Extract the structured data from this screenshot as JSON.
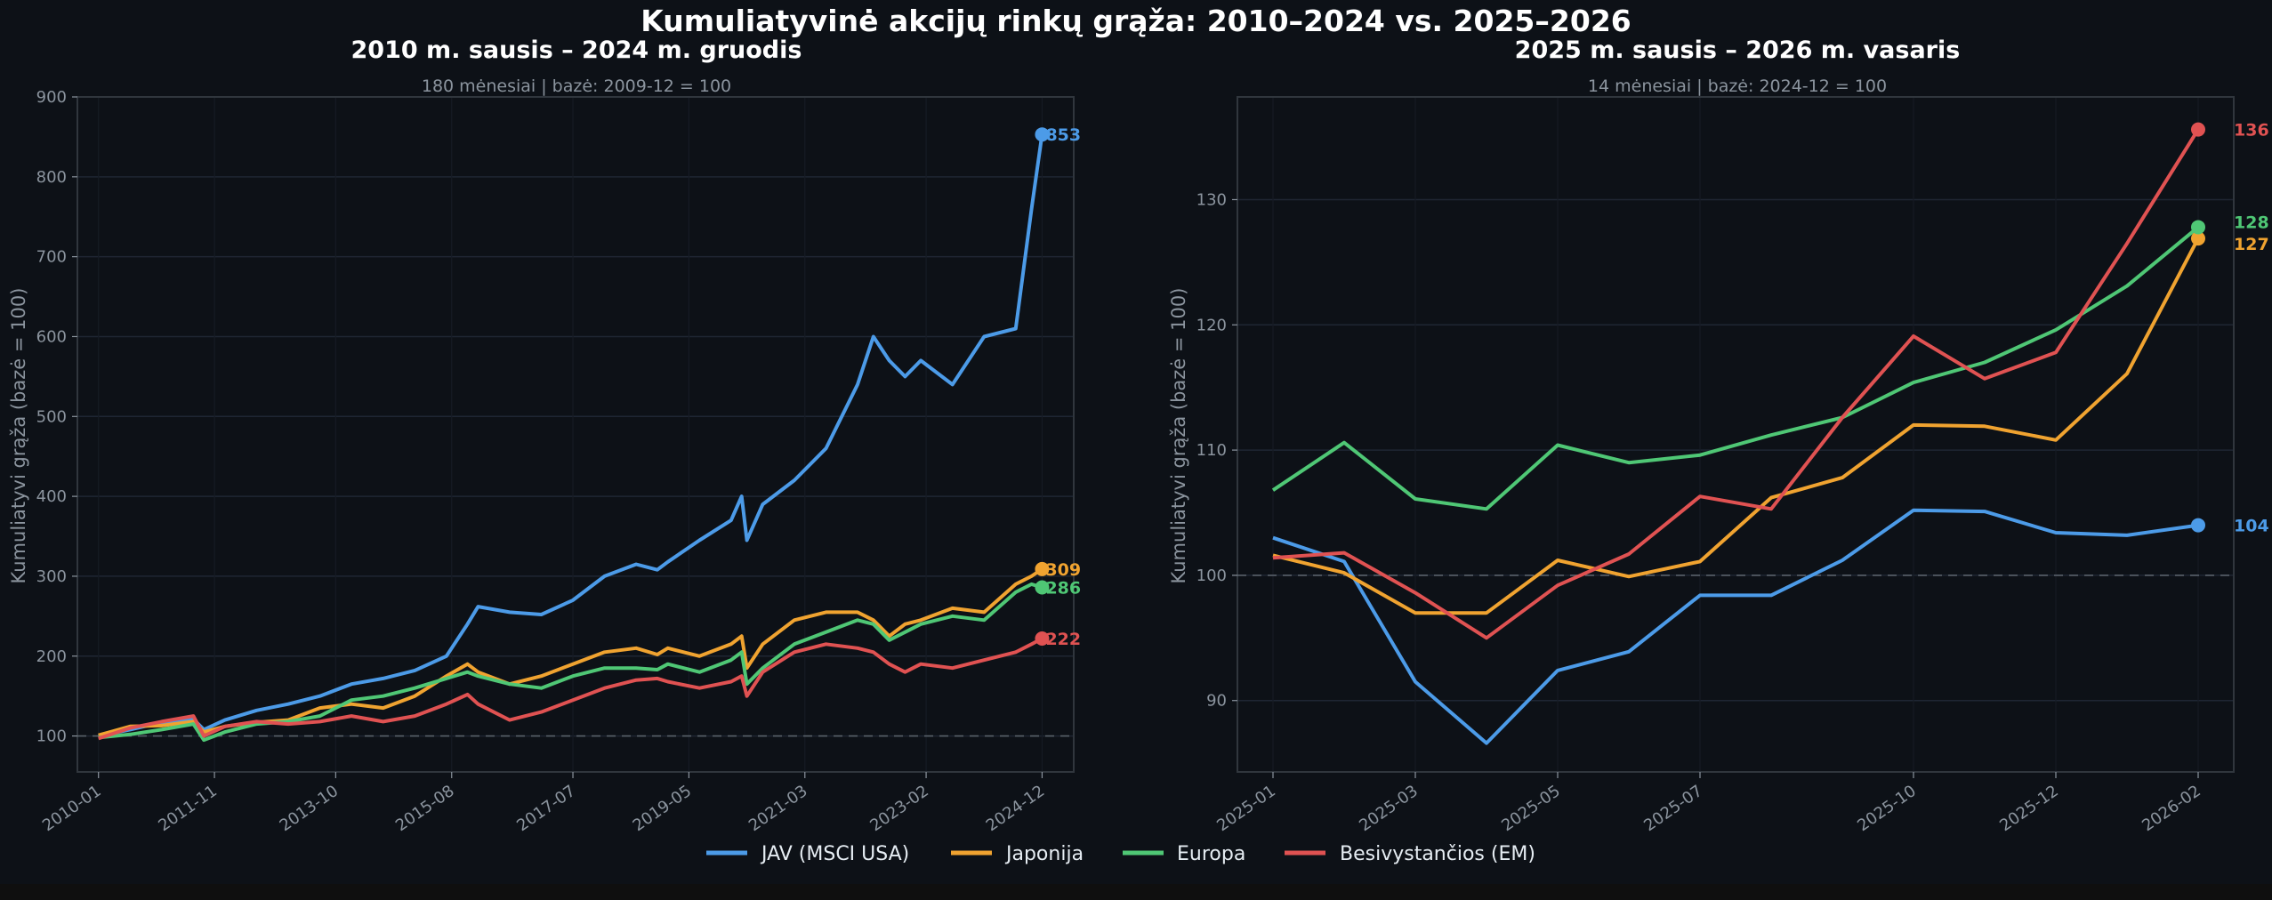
{
  "title": "Kumuliatyvinė akcijų rinkų grąža: 2010–2024 vs. 2025–2026",
  "colors": {
    "background": "#0d1117",
    "grid": "#1f2633",
    "axis": "#30363d",
    "text_muted": "#8b949e",
    "JAV": "#4c9be8",
    "Japonija": "#f0a330",
    "Europa": "#4fc775",
    "EM": "#e05252"
  },
  "legend": [
    {
      "key": "JAV",
      "label": "JAV (MSCI USA)"
    },
    {
      "key": "Japonija",
      "label": "Japonija"
    },
    {
      "key": "Europa",
      "label": "Europa"
    },
    {
      "key": "EM",
      "label": "Besivystančios (EM)"
    }
  ],
  "chart_data": [
    {
      "type": "line",
      "title": "2010 m. sausis – 2024 m. gruodis",
      "subtitle": "180 mėnesiai  |  bazė: 2009-12 = 100",
      "xlabel": "",
      "ylabel": "Kumuliatyvi grąža (bazė = 100)",
      "ylim": [
        55,
        900
      ],
      "yticks": [
        100,
        200,
        300,
        400,
        500,
        600,
        700,
        800,
        900
      ],
      "xlim_months": [
        -4,
        185
      ],
      "xticks": [
        {
          "month": 0,
          "label": "2010-01"
        },
        {
          "month": 22,
          "label": "2011-11"
        },
        {
          "month": 45,
          "label": "2013-10"
        },
        {
          "month": 67,
          "label": "2015-08"
        },
        {
          "month": 90,
          "label": "2017-07"
        },
        {
          "month": 112,
          "label": "2019-05"
        },
        {
          "month": 134,
          "label": "2021-03"
        },
        {
          "month": 157,
          "label": "2023-02"
        },
        {
          "month": 179,
          "label": "2024-12"
        }
      ],
      "baseline": 100,
      "grid": true,
      "x_months": [
        0,
        6,
        12,
        18,
        20,
        24,
        30,
        36,
        42,
        48,
        54,
        60,
        66,
        70,
        72,
        78,
        84,
        90,
        96,
        102,
        106,
        108,
        114,
        120,
        122,
        123,
        126,
        132,
        138,
        144,
        147,
        150,
        153,
        156,
        162,
        168,
        174,
        177,
        179
      ],
      "series": [
        {
          "key": "JAV",
          "name": "JAV (MSCI USA)",
          "end_label": "853",
          "values": [
            100,
            108,
            117,
            121,
            108,
            120,
            132,
            140,
            150,
            165,
            172,
            182,
            200,
            240,
            262,
            255,
            252,
            270,
            300,
            315,
            308,
            318,
            345,
            370,
            400,
            345,
            390,
            420,
            460,
            540,
            600,
            570,
            550,
            570,
            540,
            600,
            610,
            760,
            853
          ]
        },
        {
          "key": "Japonija",
          "name": "Japonija",
          "end_label": "309",
          "values": [
            101,
            112,
            113,
            118,
            105,
            112,
            117,
            120,
            135,
            140,
            135,
            150,
            175,
            190,
            180,
            165,
            175,
            190,
            205,
            210,
            202,
            210,
            200,
            215,
            225,
            185,
            215,
            245,
            255,
            255,
            245,
            225,
            240,
            245,
            260,
            255,
            290,
            300,
            309
          ]
        },
        {
          "key": "Europa",
          "name": "Europa",
          "end_label": "286",
          "values": [
            98,
            102,
            108,
            115,
            95,
            105,
            115,
            118,
            125,
            145,
            150,
            160,
            172,
            180,
            175,
            165,
            160,
            175,
            185,
            185,
            183,
            190,
            180,
            195,
            205,
            165,
            185,
            215,
            230,
            245,
            240,
            220,
            230,
            240,
            250,
            245,
            280,
            290,
            286
          ]
        },
        {
          "key": "EM",
          "name": "Besivystančios (EM)",
          "end_label": "222",
          "values": [
            97,
            110,
            118,
            125,
            100,
            112,
            118,
            115,
            118,
            125,
            118,
            125,
            140,
            152,
            140,
            120,
            130,
            145,
            160,
            170,
            172,
            168,
            160,
            168,
            175,
            150,
            180,
            205,
            215,
            210,
            205,
            190,
            180,
            190,
            185,
            195,
            205,
            215,
            222
          ]
        }
      ]
    },
    {
      "type": "line",
      "title": "2025 m. sausis – 2026 m. vasaris",
      "subtitle": "14 mėnesiai  |  bazė: 2024-12 = 100",
      "xlabel": "",
      "ylabel": "Kumuliatyvi grąža (bazė = 100)",
      "ylim": [
        84.3,
        138.2
      ],
      "yticks": [
        90,
        100,
        110,
        120,
        130
      ],
      "x": [
        "2025-01",
        "2025-02",
        "2025-03",
        "2025-04",
        "2025-05",
        "2025-06",
        "2025-07",
        "2025-08",
        "2025-09",
        "2025-10",
        "2025-11",
        "2025-12",
        "2026-01",
        "2026-02"
      ],
      "xticks": [
        "2025-01",
        "2025-03",
        "2025-05",
        "2025-07",
        "2025-10",
        "2025-12",
        "2026-02"
      ],
      "baseline": 100,
      "grid": true,
      "series": [
        {
          "key": "JAV",
          "name": "JAV (MSCI USA)",
          "end_label": "104",
          "values": [
            103.0,
            101.1,
            91.5,
            86.6,
            92.4,
            93.9,
            98.4,
            98.4,
            101.2,
            105.2,
            105.1,
            103.4,
            103.2,
            104.0
          ]
        },
        {
          "key": "Japonija",
          "name": "Japonija",
          "end_label": "127",
          "values": [
            101.6,
            100.2,
            97.0,
            97.0,
            101.2,
            99.9,
            101.1,
            106.2,
            107.8,
            112.0,
            111.9,
            110.8,
            116.1,
            126.9
          ]
        },
        {
          "key": "Europa",
          "name": "Europa",
          "end_label": "128",
          "values": [
            106.8,
            110.6,
            106.1,
            105.3,
            110.4,
            109.0,
            109.6,
            111.2,
            112.6,
            115.4,
            117.0,
            119.6,
            123.1,
            127.8
          ]
        },
        {
          "key": "EM",
          "name": "Besivystančios (EM)",
          "end_label": "136",
          "values": [
            101.4,
            101.8,
            98.6,
            95.0,
            99.2,
            101.7,
            106.3,
            105.3,
            112.6,
            119.1,
            115.7,
            117.8,
            126.5,
            135.6
          ]
        }
      ]
    }
  ]
}
